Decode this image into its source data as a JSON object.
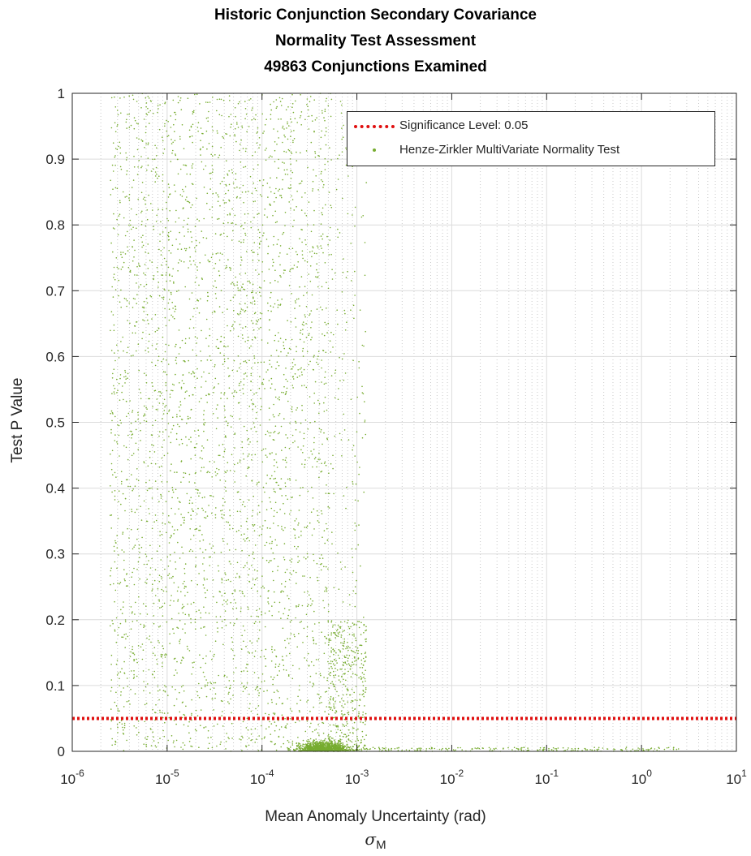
{
  "chart_data": {
    "type": "scatter",
    "title": [
      "Historic Conjunction Secondary Covariance",
      "Normality Test Assessment",
      "49863 Conjunctions Examined"
    ],
    "xlabel": "Mean Anomaly Uncertainty (rad)",
    "xlabel_symbol": "σ",
    "xlabel_symbol_subscript": "M",
    "ylabel": "Test P Value",
    "xscale": "log",
    "xlim": [
      1e-06,
      10
    ],
    "ylim": [
      0,
      1
    ],
    "grid": true,
    "minor_grid": true,
    "x_ticks": [
      {
        "value": 1e-06,
        "base": "10",
        "exp": "-6"
      },
      {
        "value": 1e-05,
        "base": "10",
        "exp": "-5"
      },
      {
        "value": 0.0001,
        "base": "10",
        "exp": "-4"
      },
      {
        "value": 0.001,
        "base": "10",
        "exp": "-3"
      },
      {
        "value": 0.01,
        "base": "10",
        "exp": "-2"
      },
      {
        "value": 0.1,
        "base": "10",
        "exp": "-1"
      },
      {
        "value": 1,
        "base": "10",
        "exp": "0"
      },
      {
        "value": 10,
        "base": "10",
        "exp": "1"
      }
    ],
    "y_ticks": [
      {
        "value": 0,
        "label": "0"
      },
      {
        "value": 0.1,
        "label": "0.1"
      },
      {
        "value": 0.2,
        "label": "0.2"
      },
      {
        "value": 0.3,
        "label": "0.3"
      },
      {
        "value": 0.4,
        "label": "0.4"
      },
      {
        "value": 0.5,
        "label": "0.5"
      },
      {
        "value": 0.6,
        "label": "0.6"
      },
      {
        "value": 0.7,
        "label": "0.7"
      },
      {
        "value": 0.8,
        "label": "0.8"
      },
      {
        "value": 0.9,
        "label": "0.9"
      },
      {
        "value": 1,
        "label": "1"
      }
    ],
    "legend_position": "top-right",
    "series": [
      {
        "name": "Significance Level: 0.05",
        "kind": "hline",
        "y": 0.05,
        "color": "#e01010",
        "style": "dotted"
      },
      {
        "name": "Henze-Zirkler MultiVariate Normality Test",
        "kind": "scatter",
        "color": "#77ac30",
        "point_count": 49863,
        "distribution": {
          "bulk_log10_x_range": [
            -5.6,
            -2.9
          ],
          "bulk_y_range": [
            0,
            1
          ],
          "low_p_cluster_log10_x_range": [
            -3.6,
            0.4
          ],
          "low_p_cluster_y_range": [
            0,
            0.05
          ],
          "upper_density_falls_off_after_log10_x": -3.3
        }
      }
    ]
  },
  "colors": {
    "axis": "#262626",
    "grid": "#dcdcdc",
    "scatter": "#77ac30",
    "threshold": "#e01010"
  }
}
